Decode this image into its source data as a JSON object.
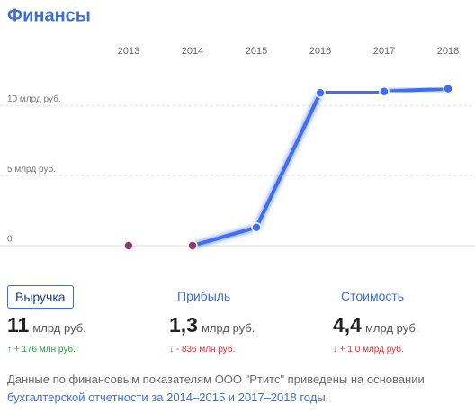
{
  "chart_data": {
    "type": "line",
    "title": "Финансы",
    "categories": [
      "2013",
      "2014",
      "2015",
      "2016",
      "2017",
      "2018"
    ],
    "series": [
      {
        "name": "Выручка",
        "color": "#3d6ef5",
        "zero_color": "#8e3a6e",
        "values": [
          0,
          0,
          1.3,
          10.9,
          11.0,
          11.2
        ]
      }
    ],
    "ylim": [
      0,
      14
    ],
    "yticks": [
      0,
      {
        "value": 5,
        "label": "5 млрд руб."
      },
      {
        "value": 10,
        "label": "10 млрд руб."
      }
    ],
    "grid": true
  },
  "tabs": [
    "Выручка",
    "Прибыль",
    "Стоимость"
  ],
  "metrics": [
    {
      "value": "11",
      "unit": "млрд руб.",
      "change": "↑ + 176 млн руб."
    },
    {
      "value": "1,3",
      "unit": "млрд руб.",
      "change": "↓ - 836 млн руб."
    },
    {
      "value": "4,4",
      "unit": "млрд руб.",
      "change": "↓ + 1,0 млрд руб."
    }
  ],
  "footnote": {
    "text": "Данные по финансовым показателям ООО \"Ртитс\" приведены на основании ",
    "link": "бухгалтерской отчетности за 2014–2015 и 2017–2018 годы",
    "end": "."
  }
}
